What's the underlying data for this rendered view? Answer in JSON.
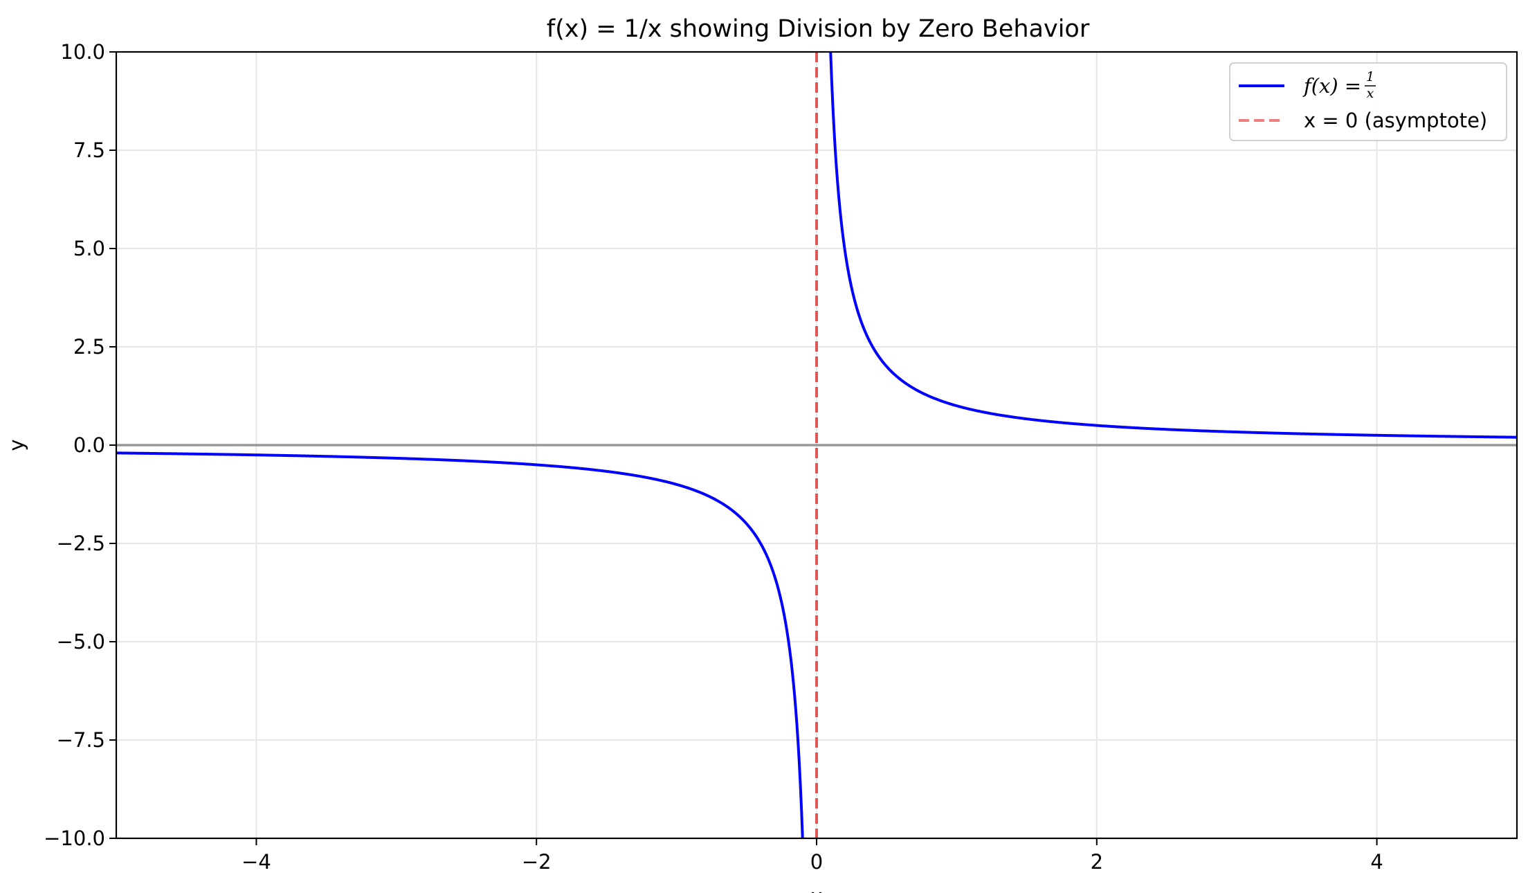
{
  "chart_data": {
    "type": "line",
    "title": "f(x) = 1/x showing Division by Zero Behavior",
    "xlabel": "x",
    "ylabel": "y",
    "xlim": [
      -5,
      5
    ],
    "ylim": [
      -10,
      10
    ],
    "grid": true,
    "x_ticks": [
      -4,
      -2,
      0,
      2,
      4
    ],
    "x_tick_labels": [
      "−4",
      "−2",
      "0",
      "2",
      "4"
    ],
    "y_ticks": [
      -10,
      -7.5,
      -5,
      -2.5,
      0,
      2.5,
      5,
      7.5,
      10
    ],
    "y_tick_labels": [
      "−10.0",
      "−7.5",
      "−5.0",
      "−2.5",
      "0.0",
      "2.5",
      "5.0",
      "7.5",
      "10.0"
    ],
    "function": "1/x",
    "series": [
      {
        "name": "f(x) = 1/x",
        "color": "#0000ff",
        "style": "solid",
        "segments": [
          {
            "x_start": -5,
            "x_end": -0.1
          },
          {
            "x_start": 0.1,
            "x_end": 5
          }
        ]
      }
    ],
    "reference_lines": [
      {
        "orientation": "vertical",
        "x": 0,
        "name": "x = 0 (asymptote)",
        "color": "#e03c3c",
        "style": "dashed"
      },
      {
        "orientation": "horizontal",
        "y": 0,
        "color": "#999999",
        "style": "solid"
      }
    ],
    "legend": {
      "placement": "top-right",
      "entries": [
        {
          "label_parts": {
            "fx": "f(x) = ",
            "num": "1",
            "den": "x"
          },
          "color": "#0000ff",
          "style": "solid"
        },
        {
          "label": "x = 0 (asymptote)",
          "color": "#f08080",
          "style": "dashed"
        }
      ]
    }
  }
}
